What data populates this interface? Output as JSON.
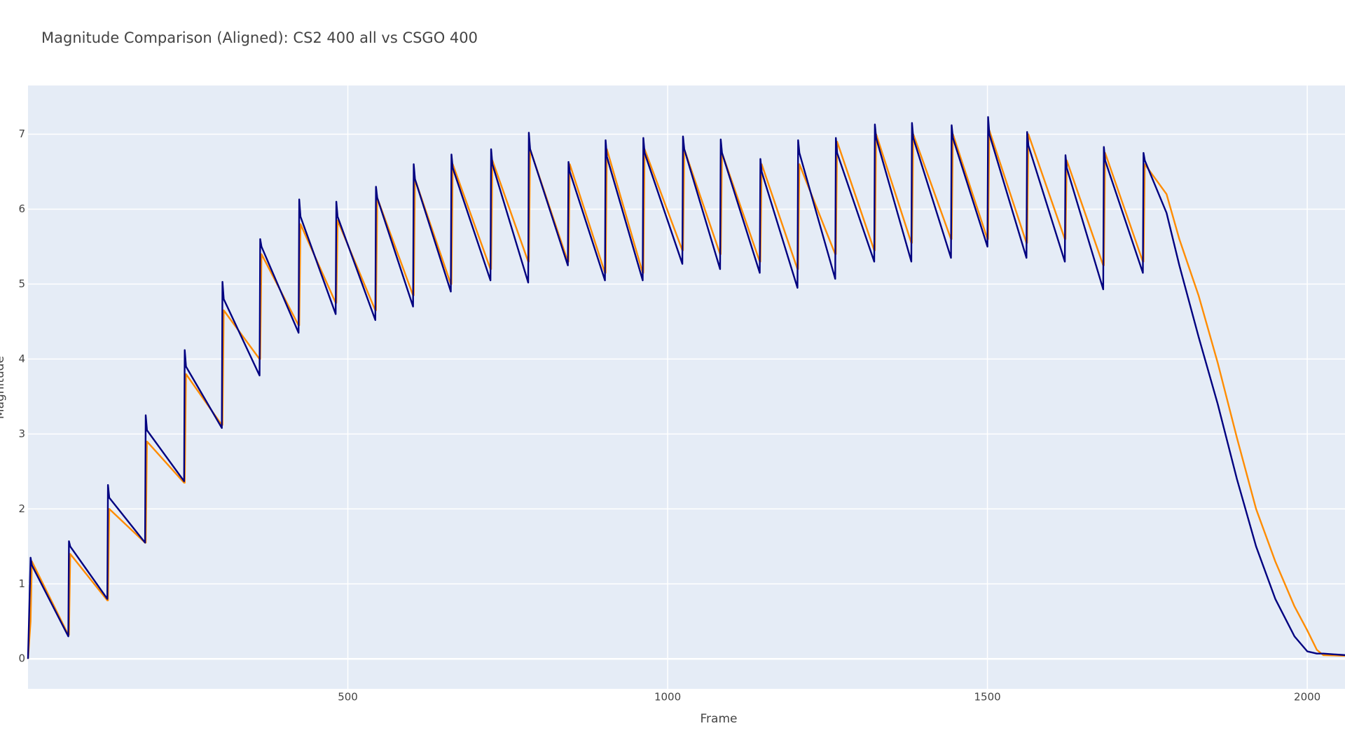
{
  "chart_data": {
    "type": "line",
    "title": "Magnitude Comparison (Aligned): CS2 400 all vs CSGO 400",
    "x_label": "Frame",
    "y_label": "Magnitude",
    "xlim": [
      0,
      2059
    ],
    "ylim": [
      -0.4,
      7.65
    ],
    "xticks": [
      500,
      1000,
      1500,
      2000
    ],
    "yticks": [
      0,
      1,
      2,
      3,
      4,
      5,
      6,
      7
    ],
    "grid": true,
    "x": [
      0,
      4,
      6,
      63,
      64,
      66,
      124,
      125,
      127,
      183,
      184,
      186,
      244,
      245,
      247,
      303,
      304,
      306,
      362,
      363,
      365,
      423,
      424,
      426,
      481,
      482,
      484,
      543,
      544,
      546,
      602,
      603,
      605,
      661,
      662,
      664,
      723,
      724,
      726,
      782,
      783,
      785,
      844,
      845,
      847,
      902,
      903,
      905,
      961,
      962,
      964,
      1023,
      1024,
      1026,
      1082,
      1083,
      1085,
      1144,
      1145,
      1147,
      1203,
      1204,
      1206,
      1262,
      1263,
      1265,
      1323,
      1324,
      1326,
      1381,
      1382,
      1384,
      1443,
      1444,
      1446,
      1500,
      1501,
      1503,
      1561,
      1562,
      1564,
      1621,
      1622,
      1624,
      1681,
      1682,
      1684,
      1743,
      1744,
      1746,
      1780,
      1800,
      1830,
      1860,
      1890,
      1920,
      1950,
      1980,
      2000,
      2015,
      2025,
      2059
    ],
    "series": [
      {
        "color": "#ff8c00",
        "values": [
          0,
          0.5,
          1.3,
          0.32,
          0.32,
          1.4,
          0.78,
          0.78,
          2.0,
          1.55,
          1.55,
          2.9,
          2.35,
          2.35,
          3.8,
          3.12,
          3.12,
          4.65,
          4.0,
          4.0,
          5.4,
          4.45,
          4.45,
          5.8,
          4.75,
          4.75,
          5.85,
          4.65,
          4.65,
          6.15,
          4.85,
          4.85,
          6.4,
          5.0,
          5.0,
          6.6,
          5.2,
          5.2,
          6.65,
          5.3,
          5.3,
          6.8,
          5.3,
          5.3,
          6.6,
          5.15,
          5.15,
          6.8,
          5.15,
          5.15,
          6.8,
          5.45,
          5.45,
          6.8,
          5.4,
          5.4,
          6.75,
          5.3,
          5.3,
          6.6,
          5.2,
          5.2,
          6.6,
          5.4,
          5.4,
          6.9,
          5.45,
          5.45,
          7.0,
          5.55,
          5.55,
          7.0,
          5.6,
          5.6,
          7.0,
          5.6,
          5.6,
          7.05,
          5.55,
          5.55,
          7.0,
          5.6,
          5.6,
          6.65,
          5.25,
          5.25,
          6.75,
          5.3,
          5.3,
          6.6,
          6.2,
          5.6,
          4.85,
          3.95,
          2.95,
          2.0,
          1.3,
          0.7,
          0.38,
          0.12,
          0.05,
          0.04
        ]
      },
      {
        "color": "#000080",
        "values": [
          0,
          1.35,
          1.25,
          0.3,
          1.57,
          1.5,
          0.8,
          2.32,
          2.15,
          1.55,
          3.25,
          3.05,
          2.37,
          4.12,
          3.9,
          3.08,
          5.03,
          4.8,
          3.78,
          5.6,
          5.5,
          4.35,
          6.13,
          5.9,
          4.6,
          6.1,
          5.9,
          4.52,
          6.3,
          6.15,
          4.7,
          6.6,
          6.4,
          4.9,
          6.73,
          6.55,
          5.05,
          6.8,
          6.6,
          5.02,
          7.02,
          6.8,
          5.25,
          6.63,
          6.5,
          5.05,
          6.92,
          6.7,
          5.05,
          6.95,
          6.75,
          5.27,
          6.97,
          6.8,
          5.2,
          6.93,
          6.75,
          5.15,
          6.67,
          6.5,
          4.95,
          6.92,
          6.75,
          5.07,
          6.95,
          6.75,
          5.3,
          7.13,
          6.95,
          5.3,
          7.15,
          6.95,
          5.35,
          7.12,
          6.95,
          5.5,
          7.23,
          7.0,
          5.35,
          7.03,
          6.85,
          5.3,
          6.72,
          6.55,
          4.93,
          6.83,
          6.65,
          5.15,
          6.75,
          6.65,
          5.95,
          5.25,
          4.3,
          3.4,
          2.4,
          1.5,
          0.8,
          0.3,
          0.1,
          0.07,
          0.07,
          0.05
        ]
      }
    ]
  }
}
